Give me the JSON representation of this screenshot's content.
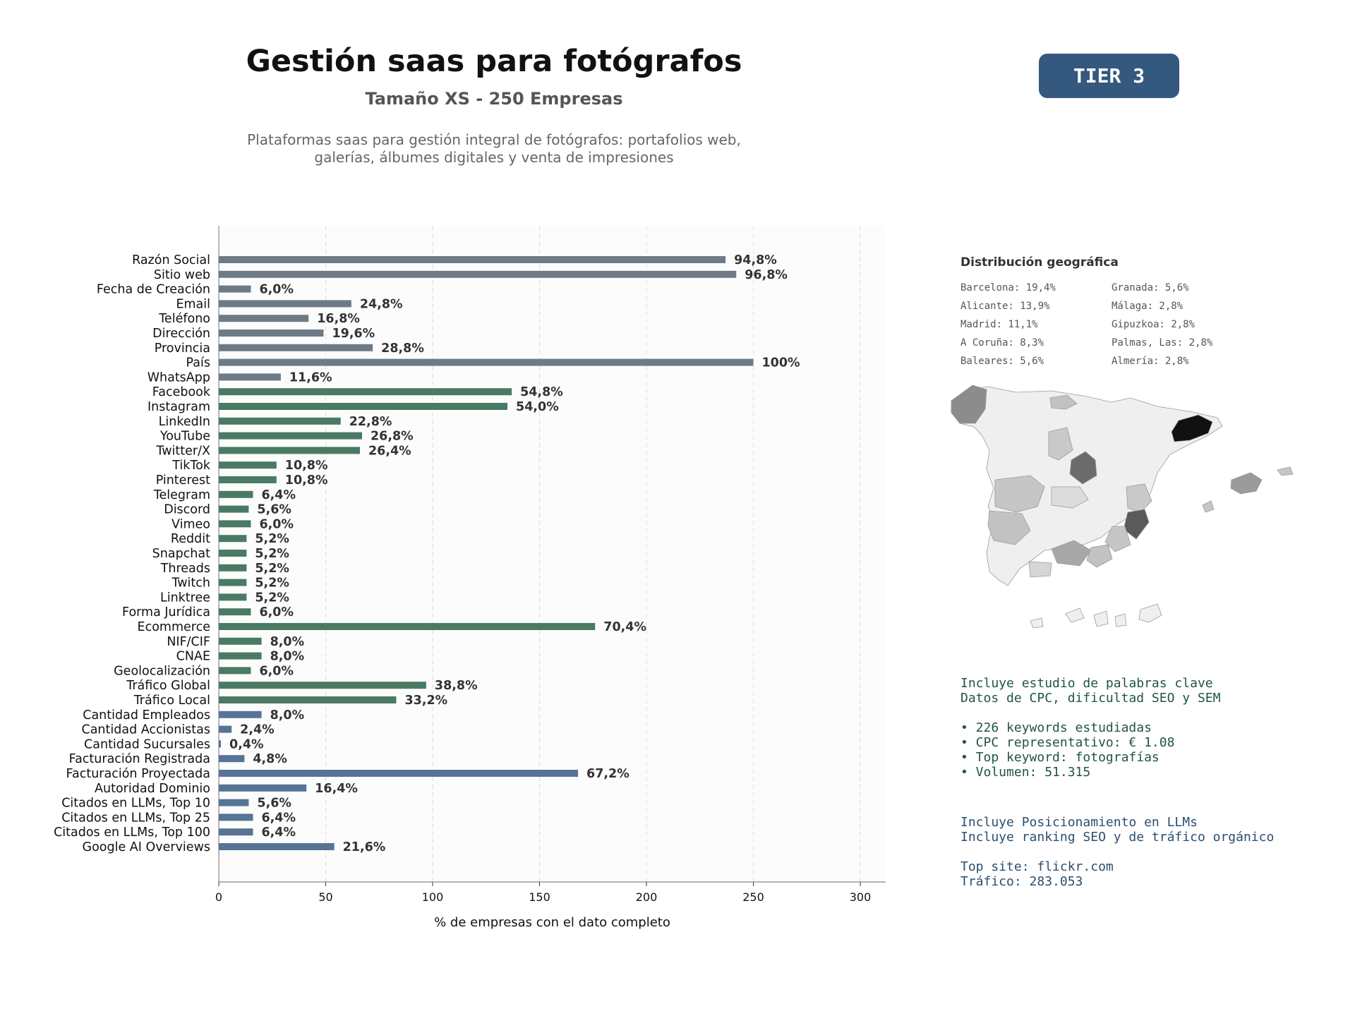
{
  "header": {
    "title": "Gestión saas para fotógrafos",
    "subtitle": "Tamaño XS - 250 Empresas",
    "description_line1": "Plataformas saas para gestión integral de fotógrafos: portafolios web,",
    "description_line2": "galerías, álbumes digitales y venta de impresiones",
    "tier_label": "TIER 3"
  },
  "colors": {
    "gray_bar": "#6e7a86",
    "green_bar": "#4a7a64",
    "blue_bar": "#577494",
    "tier_badge": "#34587e"
  },
  "chart_data": {
    "type": "bar",
    "orientation": "horizontal",
    "xlabel": "% de empresas con el dato completo",
    "xlim": [
      0,
      312
    ],
    "xticks": [
      0,
      50,
      100,
      150,
      200,
      250,
      300
    ],
    "grid": "vertical dashed",
    "categories": [
      "Razón Social",
      "Sitio web",
      "Fecha de Creación",
      "Email",
      "Teléfono",
      "Dirección",
      "Provincia",
      "País",
      "WhatsApp",
      "Facebook",
      "Instagram",
      "LinkedIn",
      "YouTube",
      "Twitter/X",
      "TikTok",
      "Pinterest",
      "Telegram",
      "Discord",
      "Vimeo",
      "Reddit",
      "Snapchat",
      "Threads",
      "Twitch",
      "Linktree",
      "Forma Jurídica",
      "Ecommerce",
      "NIF/CIF",
      "CNAE",
      "Geolocalización",
      "Tráfico Global",
      "Tráfico Local",
      "Cantidad Empleados",
      "Cantidad Accionistas",
      "Cantidad Sucursales",
      "Facturación Registrada",
      "Facturación Proyectada",
      "Autoridad Dominio",
      "Citados en LLMs, Top 10",
      "Citados en LLMs, Top 25",
      "Citados en LLMs, Top 100",
      "Google AI Overviews"
    ],
    "values": [
      237,
      242,
      15,
      62,
      42,
      49,
      72,
      250,
      29,
      137,
      135,
      57,
      67,
      66,
      27,
      27,
      16,
      14,
      15,
      13,
      13,
      13,
      13,
      13,
      15,
      176,
      20,
      20,
      15,
      97,
      83,
      20,
      6,
      1,
      12,
      168,
      41,
      14,
      16,
      16,
      54
    ],
    "value_labels": [
      "94,8%",
      "96,8%",
      "6,0%",
      "24,8%",
      "16,8%",
      "19,6%",
      "28,8%",
      "100%",
      "11,6%",
      "54,8%",
      "54,0%",
      "22,8%",
      "26,8%",
      "26,4%",
      "10,8%",
      "10,8%",
      "6,4%",
      "5,6%",
      "6,0%",
      "5,2%",
      "5,2%",
      "5,2%",
      "5,2%",
      "5,2%",
      "6,0%",
      "70,4%",
      "8,0%",
      "8,0%",
      "6,0%",
      "38,8%",
      "33,2%",
      "8,0%",
      "2,4%",
      "0,4%",
      "4,8%",
      "67,2%",
      "16,4%",
      "5,6%",
      "6,4%",
      "6,4%",
      "21,6%"
    ],
    "groups": [
      "gray",
      "gray",
      "gray",
      "gray",
      "gray",
      "gray",
      "gray",
      "gray",
      "gray",
      "green",
      "green",
      "green",
      "green",
      "green",
      "green",
      "green",
      "green",
      "green",
      "green",
      "green",
      "green",
      "green",
      "green",
      "green",
      "green",
      "green",
      "green",
      "green",
      "green",
      "green",
      "green",
      "blue",
      "blue",
      "blue",
      "blue",
      "blue",
      "blue",
      "blue",
      "blue",
      "blue",
      "blue"
    ]
  },
  "geo": {
    "title": "Distribución geográfica",
    "col1": [
      "Barcelona: 19,4%",
      "Alicante: 13,9%",
      "Madrid: 11,1%",
      "A Coruña: 8,3%",
      "Baleares: 5,6%"
    ],
    "col2": [
      "Granada: 5,6%",
      "Málaga: 2,8%",
      "Gipuzkoa: 2,8%",
      "Palmas, Las: 2,8%",
      "Almería: 2,8%"
    ]
  },
  "seo": {
    "line1": "Incluye estudio de palabras clave",
    "line2": "Datos de CPC, dificultad SEO y SEM",
    "bullet1": "• 226 keywords estudiadas",
    "bullet2": "• CPC representativo: € 1.08",
    "bullet3": "• Top keyword: fotografías",
    "bullet4": "• Volumen: 51.315"
  },
  "llm": {
    "line1": "Incluye Posicionamiento en LLMs",
    "line2": "Incluye ranking SEO y de tráfico orgánico",
    "top_site": "Top site: flickr.com",
    "traffic": "Tráfico: 283.053"
  }
}
